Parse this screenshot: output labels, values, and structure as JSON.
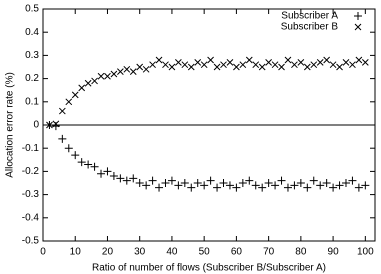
{
  "chart_data": {
    "type": "scatter",
    "xlabel": "Ratio of number of flows (Subscriber B/Subscriber A)",
    "ylabel": "Allocation error rate (%)",
    "x": [
      2,
      4,
      6,
      8,
      10,
      12,
      14,
      16,
      18,
      20,
      22,
      24,
      26,
      28,
      30,
      32,
      34,
      36,
      38,
      40,
      42,
      44,
      46,
      48,
      50,
      52,
      54,
      56,
      58,
      60,
      62,
      64,
      66,
      68,
      70,
      72,
      74,
      76,
      78,
      80,
      82,
      84,
      86,
      88,
      90,
      92,
      94,
      96,
      98,
      100
    ],
    "series": [
      {
        "name": "Subscriber A",
        "marker": "+",
        "color": "#000000",
        "values": [
          0,
          -0.005,
          -0.06,
          -0.1,
          -0.13,
          -0.16,
          -0.17,
          -0.18,
          -0.21,
          -0.2,
          -0.22,
          -0.23,
          -0.24,
          -0.23,
          -0.25,
          -0.26,
          -0.24,
          -0.27,
          -0.25,
          -0.24,
          -0.26,
          -0.25,
          -0.27,
          -0.25,
          -0.26,
          -0.24,
          -0.27,
          -0.25,
          -0.26,
          -0.27,
          -0.25,
          -0.24,
          -0.26,
          -0.27,
          -0.25,
          -0.26,
          -0.24,
          -0.27,
          -0.26,
          -0.25,
          -0.27,
          -0.24,
          -0.26,
          -0.25,
          -0.27,
          -0.26,
          -0.25,
          -0.24,
          -0.27,
          -0.26
        ]
      },
      {
        "name": "Subscriber B",
        "marker": "x",
        "color": "#000000",
        "values": [
          0,
          0.005,
          0.06,
          0.1,
          0.13,
          0.16,
          0.18,
          0.19,
          0.21,
          0.21,
          0.22,
          0.23,
          0.24,
          0.23,
          0.25,
          0.24,
          0.26,
          0.28,
          0.26,
          0.25,
          0.27,
          0.26,
          0.25,
          0.27,
          0.26,
          0.28,
          0.25,
          0.26,
          0.27,
          0.25,
          0.26,
          0.28,
          0.26,
          0.25,
          0.27,
          0.26,
          0.25,
          0.28,
          0.26,
          0.27,
          0.25,
          0.26,
          0.27,
          0.28,
          0.26,
          0.25,
          0.27,
          0.26,
          0.28,
          0.27
        ]
      }
    ],
    "xlim": [
      0,
      103
    ],
    "xticks": [
      0,
      10,
      20,
      30,
      40,
      50,
      60,
      70,
      80,
      90,
      100
    ],
    "ylim": [
      -0.5,
      0.5
    ],
    "yticks": [
      -0.5,
      -0.4,
      -0.3,
      -0.2,
      -0.1,
      0,
      0.1,
      0.2,
      0.3,
      0.4,
      0.5
    ],
    "legend": "upper right"
  }
}
